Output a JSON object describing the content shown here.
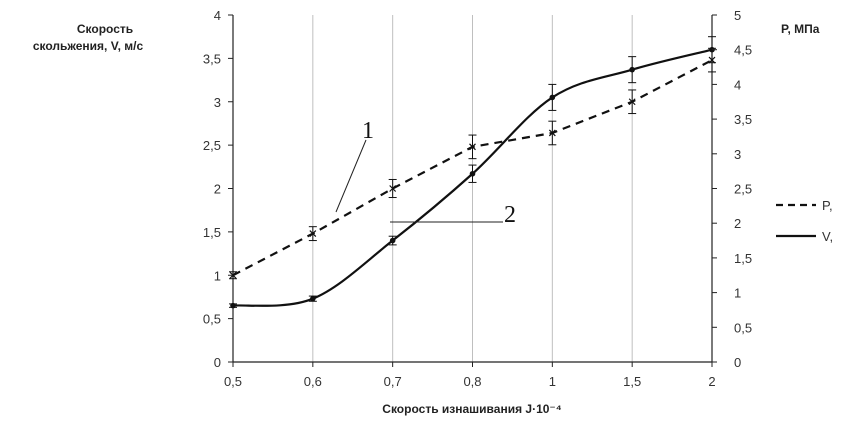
{
  "chart_data": {
    "type": "line",
    "title": "",
    "xlabel": "Скорость изнашивания J·10⁻⁴",
    "ylabel_left": [
      "Скорость",
      "скольжения, V, м/с"
    ],
    "ylabel_right": "P, МПа",
    "categories": [
      "0,5",
      "0,6",
      "0,7",
      "0,8",
      "1",
      "1,5",
      "2"
    ],
    "y_left": {
      "lim": [
        0,
        4
      ],
      "ticks": [
        "0",
        "0,5",
        "1",
        "1,5",
        "2",
        "2,5",
        "3",
        "3,5",
        "4"
      ]
    },
    "y_right": {
      "lim": [
        0,
        5
      ],
      "ticks": [
        "0",
        "0,5",
        "1",
        "1,5",
        "2",
        "2,5",
        "3",
        "3,5",
        "4",
        "4,5",
        "5"
      ]
    },
    "grid": "vertical",
    "legend_position": "right",
    "series": [
      {
        "name": "P,",
        "style": "dashed",
        "axis": "right",
        "values": [
          1.25,
          1.85,
          2.5,
          3.1,
          3.3,
          3.75,
          4.35
        ],
        "errors": [
          0.05,
          0.1,
          0.13,
          0.17,
          0.17,
          0.17,
          0.17
        ]
      },
      {
        "name": "V,",
        "style": "solid",
        "axis": "left",
        "values": [
          0.65,
          0.73,
          1.4,
          2.17,
          3.05,
          3.37,
          3.6
        ],
        "errors": [
          0.02,
          0.03,
          0.05,
          0.1,
          0.15,
          0.15,
          0.15
        ]
      }
    ],
    "annotations": [
      {
        "text": "1"
      },
      {
        "text": "2"
      }
    ],
    "colors": {
      "lines": "#111111",
      "grid": "#bfbfbf",
      "axes": "#222222"
    }
  }
}
